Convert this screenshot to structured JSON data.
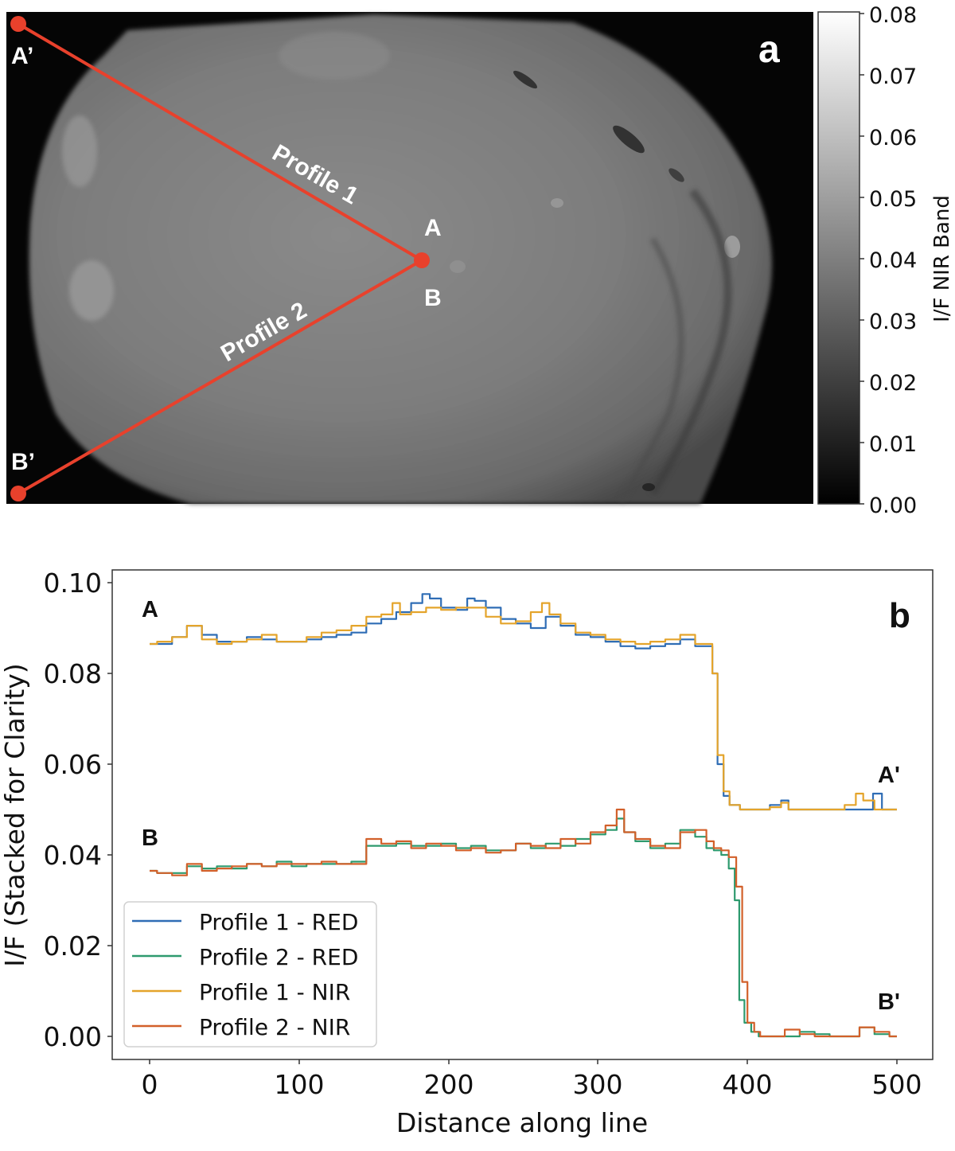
{
  "panel_a": {
    "label": "a",
    "point_labels": {
      "a_prime": "A’",
      "b_prime": "B’",
      "a": "A",
      "b": "B"
    },
    "profile_labels": [
      "Profile 1",
      "Profile 2"
    ],
    "line_color": "#e8412c",
    "colorbar": {
      "label": "I/F NIR Band",
      "ticks": [
        "0.08",
        "0.07",
        "0.06",
        "0.05",
        "0.04",
        "0.03",
        "0.02",
        "0.01",
        "0.00"
      ],
      "min": 0.0,
      "max": 0.08
    }
  },
  "panel_b": {
    "label": "b",
    "curve_labels": {
      "a": "A",
      "a_prime": "A'",
      "b": "B",
      "b_prime": "B'"
    }
  },
  "chart_data": [
    {
      "type": "heatmap",
      "title": "a",
      "description": "Grayscale NIR-band I/F image of an irregular moon with two profile lines",
      "colorbar_label": "I/F NIR Band",
      "colorbar_range": [
        0.0,
        0.08
      ],
      "colorbar_ticks": [
        0.0,
        0.01,
        0.02,
        0.03,
        0.04,
        0.05,
        0.06,
        0.07,
        0.08
      ],
      "annotations": [
        {
          "text": "Profile 1",
          "from": "A",
          "to": "A’"
        },
        {
          "text": "Profile 2",
          "from": "B",
          "to": "B’"
        },
        {
          "text": "a",
          "position": "top-right"
        }
      ]
    },
    {
      "type": "line",
      "title": "b",
      "xlabel": "Distance along line",
      "ylabel": "I/F (Stacked for Clarity)",
      "xlim": [
        -25,
        525
      ],
      "ylim": [
        -0.005,
        0.102
      ],
      "xticks": [
        0,
        100,
        200,
        300,
        400,
        500
      ],
      "yticks": [
        "0.00",
        "0.02",
        "0.04",
        "0.06",
        "0.08",
        "0.10"
      ],
      "grid": false,
      "legend_position": "lower left",
      "annotations": [
        "A",
        "A'",
        "B",
        "B'",
        "b"
      ],
      "series": [
        {
          "name": "Profile 1 - RED",
          "color": "#2f6db5",
          "x": [
            0,
            10,
            20,
            30,
            40,
            50,
            60,
            70,
            80,
            90,
            100,
            110,
            120,
            130,
            140,
            150,
            160,
            170,
            180,
            185,
            190,
            200,
            210,
            215,
            220,
            230,
            240,
            250,
            260,
            270,
            280,
            290,
            300,
            310,
            320,
            330,
            340,
            350,
            360,
            370,
            375,
            378,
            382,
            386,
            390,
            400,
            410,
            420,
            425,
            430,
            440,
            450,
            460,
            470,
            480,
            488,
            492,
            500
          ],
          "y": [
            0.0865,
            0.0865,
            0.088,
            0.0905,
            0.0885,
            0.087,
            0.087,
            0.088,
            0.0875,
            0.087,
            0.087,
            0.0875,
            0.088,
            0.0885,
            0.089,
            0.091,
            0.092,
            0.0935,
            0.0955,
            0.0975,
            0.0965,
            0.0945,
            0.094,
            0.0965,
            0.096,
            0.0945,
            0.092,
            0.091,
            0.09,
            0.0925,
            0.0905,
            0.0885,
            0.088,
            0.087,
            0.086,
            0.0855,
            0.086,
            0.0865,
            0.0875,
            0.086,
            0.086,
            0.08,
            0.06,
            0.053,
            0.051,
            0.05,
            0.05,
            0.051,
            0.052,
            0.05,
            0.05,
            0.05,
            0.05,
            0.05,
            0.05,
            0.0535,
            0.05,
            0.05
          ]
        },
        {
          "name": "Profile 2 - RED",
          "color": "#2e9a6e",
          "x": [
            0,
            10,
            20,
            30,
            40,
            50,
            60,
            70,
            80,
            90,
            100,
            110,
            120,
            130,
            140,
            150,
            160,
            170,
            180,
            190,
            200,
            210,
            220,
            230,
            240,
            250,
            260,
            270,
            280,
            290,
            300,
            310,
            315,
            320,
            330,
            340,
            350,
            360,
            370,
            375,
            380,
            385,
            390,
            393,
            396,
            400,
            405,
            410,
            420,
            430,
            440,
            450,
            460,
            470,
            480,
            490,
            500
          ],
          "y": [
            0.0365,
            0.036,
            0.036,
            0.0375,
            0.037,
            0.0375,
            0.037,
            0.038,
            0.0375,
            0.0385,
            0.0375,
            0.038,
            0.038,
            0.038,
            0.0385,
            0.042,
            0.042,
            0.0425,
            0.042,
            0.042,
            0.0425,
            0.0415,
            0.042,
            0.041,
            0.041,
            0.0425,
            0.0415,
            0.0425,
            0.042,
            0.0435,
            0.0445,
            0.0455,
            0.048,
            0.045,
            0.043,
            0.0415,
            0.0425,
            0.0455,
            0.044,
            0.0415,
            0.041,
            0.04,
            0.037,
            0.03,
            0.008,
            0.003,
            0.001,
            0.0,
            0.0,
            0.0,
            0.001,
            0.0005,
            0.0,
            0.0,
            0.002,
            0.0005,
            0.0
          ]
        },
        {
          "name": "Profile 1 - NIR",
          "color": "#e4a42b",
          "x": [
            0,
            10,
            20,
            30,
            40,
            50,
            60,
            70,
            80,
            90,
            100,
            110,
            120,
            130,
            140,
            150,
            160,
            165,
            170,
            180,
            190,
            200,
            210,
            220,
            230,
            240,
            250,
            260,
            265,
            270,
            280,
            290,
            300,
            310,
            320,
            330,
            340,
            350,
            360,
            370,
            375,
            378,
            382,
            386,
            390,
            400,
            410,
            420,
            425,
            430,
            440,
            450,
            460,
            470,
            475,
            480,
            490,
            500
          ],
          "y": [
            0.0865,
            0.087,
            0.088,
            0.0905,
            0.0875,
            0.0865,
            0.087,
            0.0875,
            0.0885,
            0.087,
            0.087,
            0.088,
            0.089,
            0.0895,
            0.0905,
            0.0925,
            0.093,
            0.0955,
            0.093,
            0.0935,
            0.0945,
            0.094,
            0.0945,
            0.0945,
            0.0925,
            0.091,
            0.0915,
            0.0935,
            0.0955,
            0.093,
            0.091,
            0.089,
            0.0885,
            0.0875,
            0.087,
            0.0865,
            0.087,
            0.0875,
            0.0885,
            0.0865,
            0.0865,
            0.08,
            0.062,
            0.054,
            0.051,
            0.05,
            0.05,
            0.0505,
            0.0515,
            0.05,
            0.05,
            0.05,
            0.05,
            0.051,
            0.0535,
            0.052,
            0.05,
            0.05
          ]
        },
        {
          "name": "Profile 2 - NIR",
          "color": "#d2602a",
          "x": [
            0,
            10,
            20,
            30,
            40,
            50,
            60,
            70,
            80,
            90,
            100,
            110,
            120,
            130,
            140,
            150,
            160,
            170,
            180,
            190,
            200,
            210,
            220,
            230,
            240,
            250,
            260,
            270,
            280,
            290,
            300,
            310,
            315,
            320,
            330,
            340,
            350,
            360,
            370,
            375,
            380,
            385,
            390,
            395,
            398,
            402,
            407,
            410,
            420,
            430,
            440,
            450,
            460,
            470,
            480,
            490,
            500
          ],
          "y": [
            0.0365,
            0.036,
            0.0355,
            0.038,
            0.0365,
            0.037,
            0.0375,
            0.038,
            0.0375,
            0.038,
            0.038,
            0.038,
            0.0385,
            0.038,
            0.038,
            0.0435,
            0.0425,
            0.043,
            0.0415,
            0.0425,
            0.042,
            0.041,
            0.0415,
            0.0405,
            0.041,
            0.0425,
            0.042,
            0.0415,
            0.0435,
            0.0425,
            0.045,
            0.0465,
            0.05,
            0.045,
            0.0435,
            0.042,
            0.0415,
            0.045,
            0.0455,
            0.043,
            0.0415,
            0.041,
            0.0395,
            0.033,
            0.012,
            0.003,
            0.001,
            0.0,
            0.0,
            0.0015,
            0.0005,
            0.0,
            0.0,
            0.0,
            0.002,
            0.001,
            0.0
          ]
        }
      ]
    }
  ],
  "axes_b": {
    "xlabel": "Distance along line",
    "ylabel": "I/F (Stacked for Clarity)",
    "xticks": [
      "0",
      "100",
      "200",
      "300",
      "400",
      "500"
    ],
    "yticks": [
      "0.00",
      "0.02",
      "0.04",
      "0.06",
      "0.08",
      "0.10"
    ]
  },
  "legend": {
    "items": [
      {
        "label": "Profile 1 - RED",
        "color": "#2f6db5"
      },
      {
        "label": "Profile 2 - RED",
        "color": "#2e9a6e"
      },
      {
        "label": "Profile 1 - NIR",
        "color": "#e4a42b"
      },
      {
        "label": "Profile 2 - NIR",
        "color": "#d2602a"
      }
    ]
  }
}
